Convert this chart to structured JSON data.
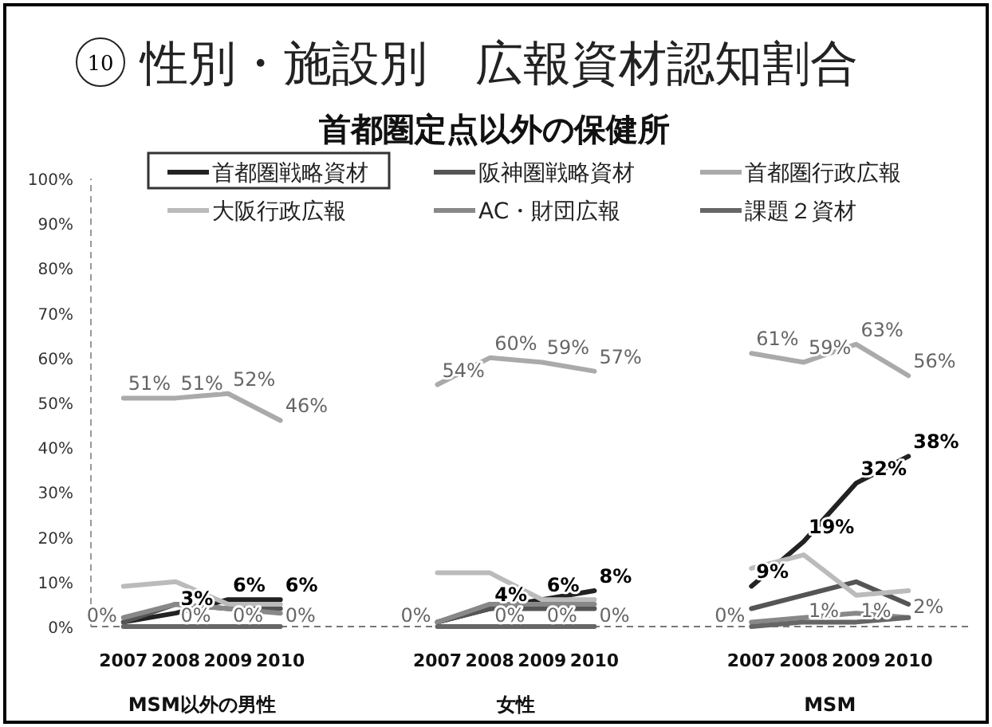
{
  "chart_data": {
    "type": "line",
    "title": "性別・施設別　広報資材認知割合",
    "subtitle": "首都圏定点以外の保健所",
    "annotations": [
      "10",
      "MSM以外の男性",
      "女性",
      "MSM"
    ],
    "categories": [
      "2007",
      "2008",
      "2009",
      "2010",
      null,
      null,
      "2007",
      "2008",
      "2009",
      "2010",
      null,
      null,
      "2007",
      "2008",
      "2009",
      "2010"
    ],
    "ylim": [
      0,
      100
    ],
    "yticks": [
      {
        "value": 0,
        "label": "0%"
      },
      {
        "value": 10,
        "label": "10%"
      },
      {
        "value": 20,
        "label": "20%"
      },
      {
        "value": 30,
        "label": "30%"
      },
      {
        "value": 40,
        "label": "40%"
      },
      {
        "value": 50,
        "label": "50%"
      },
      {
        "value": 60,
        "label": "60%"
      },
      {
        "value": 70,
        "label": "70%"
      },
      {
        "value": 80,
        "label": "80%"
      },
      {
        "value": 90,
        "label": "90%"
      },
      {
        "value": 100,
        "label": "100%"
      }
    ],
    "grid": false,
    "legend": "top",
    "marker": "none",
    "line_style": "solid",
    "series": [
      {
        "name": "首都圏戦略資材",
        "color": "#222222",
        "values": [
          1,
          3,
          6,
          6,
          null,
          null,
          1,
          4,
          6,
          8,
          null,
          null,
          9,
          19,
          32,
          38
        ],
        "value_labels": [
          null,
          "3%",
          "6%",
          "6%",
          null,
          null,
          null,
          "4%",
          "6%",
          "8%",
          null,
          null,
          "9%",
          "19%",
          "32%",
          "38%"
        ]
      },
      {
        "name": "阪神圏戦略資材",
        "color": "#555555",
        "values": [
          1,
          5,
          4,
          4,
          null,
          null,
          1,
          4,
          4,
          4,
          null,
          null,
          4,
          7,
          10,
          5
        ]
      },
      {
        "name": "首都圏行政広報",
        "color": "#aaaaaa",
        "values": [
          51,
          51,
          52,
          46,
          null,
          null,
          54,
          60,
          59,
          57,
          null,
          null,
          61,
          59,
          63,
          56
        ],
        "value_labels": [
          "51%",
          "51%",
          "52%",
          "46%",
          null,
          null,
          "54%",
          "60%",
          "59%",
          "57%",
          null,
          null,
          "61%",
          "59%",
          "63%",
          "56%"
        ]
      },
      {
        "name": "大阪行政広報",
        "color": "#bbbbbb",
        "values": [
          9,
          10,
          5,
          5,
          null,
          null,
          12,
          12,
          6,
          6,
          null,
          null,
          13,
          16,
          7,
          8
        ]
      },
      {
        "name": "AC・財団広報",
        "color": "#888888",
        "values": [
          2,
          5,
          4,
          3,
          null,
          null,
          1,
          5,
          5,
          5,
          null,
          null,
          1,
          2,
          3,
          2
        ]
      },
      {
        "name": "課題２資材",
        "color": "#666666",
        "values": [
          0,
          0,
          0,
          0,
          null,
          null,
          0,
          0,
          0,
          0,
          null,
          null,
          0,
          1,
          1,
          2
        ],
        "value_labels": [
          "0%",
          "0%",
          "0%",
          "0%",
          null,
          null,
          "0%",
          "0%",
          "0%",
          "0%",
          null,
          null,
          "0%",
          "1%",
          "1%",
          "2%"
        ]
      }
    ]
  }
}
